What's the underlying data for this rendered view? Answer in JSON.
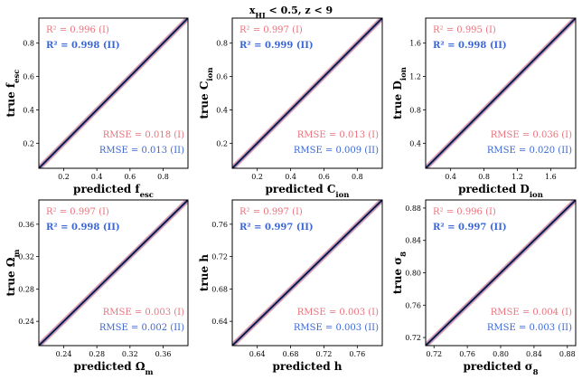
{
  "title": {
    "parts": [
      {
        "t": "x",
        "sub": "HI"
      },
      {
        "t": "  <  0.5,  z  <  9"
      }
    ]
  },
  "colors": {
    "series_I": "#e8737d",
    "series_II": "#3b67d6",
    "band_I": "#e98e97",
    "band_II": "#6f8ee0",
    "diagonal": "#0c0c2b"
  },
  "chart_data": [
    {
      "type": "scatter",
      "xlabel": {
        "prefix": "predicted ",
        "main": "f",
        "sub": "esc"
      },
      "ylabel": {
        "prefix": "true ",
        "main": "f",
        "sub": "esc"
      },
      "xlim": [
        0.05,
        0.95
      ],
      "ylim": [
        0.05,
        0.95
      ],
      "xticks": [
        "0.2",
        "0.4",
        "0.6",
        "0.8"
      ],
      "yticks": [
        "0.2",
        "0.4",
        "0.6",
        "0.8"
      ],
      "stats": {
        "r2": [
          "R² = 0.996 (I)",
          "R² = 0.998 (II)"
        ],
        "rmse": [
          "RMSE = 0.018 (I)",
          "RMSE = 0.013 (II)"
        ]
      },
      "series": [
        {
          "x": [
            0.05,
            0.95
          ],
          "y": [
            0.05,
            0.95
          ]
        }
      ]
    },
    {
      "type": "scatter",
      "xlabel": {
        "prefix": "predicted ",
        "main": "C",
        "sub": "ion"
      },
      "ylabel": {
        "prefix": "true ",
        "main": "C",
        "sub": "ion"
      },
      "xlim": [
        0.05,
        0.95
      ],
      "ylim": [
        0.05,
        0.95
      ],
      "xticks": [
        "0.2",
        "0.4",
        "0.6",
        "0.8"
      ],
      "yticks": [
        "0.2",
        "0.4",
        "0.6",
        "0.8"
      ],
      "stats": {
        "r2": [
          "R² = 0.997 (I)",
          "R² = 0.999 (II)"
        ],
        "rmse": [
          "RMSE = 0.013 (I)",
          "RMSE = 0.009 (II)"
        ]
      },
      "series": [
        {
          "x": [
            0.05,
            0.95
          ],
          "y": [
            0.05,
            0.95
          ]
        }
      ]
    },
    {
      "type": "scatter",
      "xlabel": {
        "prefix": "predicted ",
        "main": "D",
        "sub": "ion"
      },
      "ylabel": {
        "prefix": "true ",
        "main": "D",
        "sub": "ion"
      },
      "xlim": [
        0.1,
        1.9
      ],
      "ylim": [
        0.1,
        1.9
      ],
      "xticks": [
        "0.4",
        "0.8",
        "1.2",
        "1.6"
      ],
      "yticks": [
        "0.4",
        "0.8",
        "1.2",
        "1.6"
      ],
      "stats": {
        "r2": [
          "R² = 0.995 (I)",
          "R² = 0.998 (II)"
        ],
        "rmse": [
          "RMSE = 0.036 (I)",
          "RMSE = 0.020 (II)"
        ]
      },
      "series": [
        {
          "x": [
            0.1,
            1.9
          ],
          "y": [
            0.1,
            1.9
          ]
        }
      ]
    },
    {
      "type": "scatter",
      "xlabel": {
        "prefix": "predicted ",
        "main": "Ω",
        "sub": "m"
      },
      "ylabel": {
        "prefix": "true ",
        "main": "Ω",
        "sub": "m"
      },
      "xlim": [
        0.21,
        0.39
      ],
      "ylim": [
        0.21,
        0.39
      ],
      "xticks": [
        "0.24",
        "0.28",
        "0.32",
        "0.36"
      ],
      "yticks": [
        "0.24",
        "0.28",
        "0.32",
        "0.36"
      ],
      "stats": {
        "r2": [
          "R² = 0.997 (I)",
          "R² = 0.998 (II)"
        ],
        "rmse": [
          "RMSE = 0.003 (I)",
          "RMSE = 0.002 (II)"
        ]
      },
      "series": [
        {
          "x": [
            0.21,
            0.39
          ],
          "y": [
            0.21,
            0.39
          ]
        }
      ]
    },
    {
      "type": "scatter",
      "xlabel": {
        "prefix": "predicted ",
        "main": "h",
        "sub": ""
      },
      "ylabel": {
        "prefix": "true ",
        "main": "h",
        "sub": ""
      },
      "xlim": [
        0.61,
        0.79
      ],
      "ylim": [
        0.61,
        0.79
      ],
      "xticks": [
        "0.64",
        "0.68",
        "0.72",
        "0.76"
      ],
      "yticks": [
        "0.64",
        "0.68",
        "0.72",
        "0.76"
      ],
      "stats": {
        "r2": [
          "R² = 0.997 (I)",
          "R² = 0.997 (II)"
        ],
        "rmse": [
          "RMSE = 0.003 (I)",
          "RMSE = 0.003 (II)"
        ]
      },
      "series": [
        {
          "x": [
            0.61,
            0.79
          ],
          "y": [
            0.61,
            0.79
          ]
        }
      ]
    },
    {
      "type": "scatter",
      "xlabel": {
        "prefix": "predicted ",
        "main": "σ",
        "sub": "8"
      },
      "ylabel": {
        "prefix": "true ",
        "main": "σ",
        "sub": "8"
      },
      "xlim": [
        0.71,
        0.89
      ],
      "ylim": [
        0.71,
        0.89
      ],
      "xticks": [
        "0.72",
        "0.76",
        "0.80",
        "0.84",
        "0.88"
      ],
      "yticks": [
        "0.72",
        "0.76",
        "0.80",
        "0.84",
        "0.88"
      ],
      "stats": {
        "r2": [
          "R² = 0.996 (I)",
          "R² = 0.997 (II)"
        ],
        "rmse": [
          "RMSE = 0.004 (I)",
          "RMSE = 0.003 (II)"
        ]
      },
      "series": [
        {
          "x": [
            0.71,
            0.89
          ],
          "y": [
            0.71,
            0.89
          ]
        }
      ]
    }
  ]
}
